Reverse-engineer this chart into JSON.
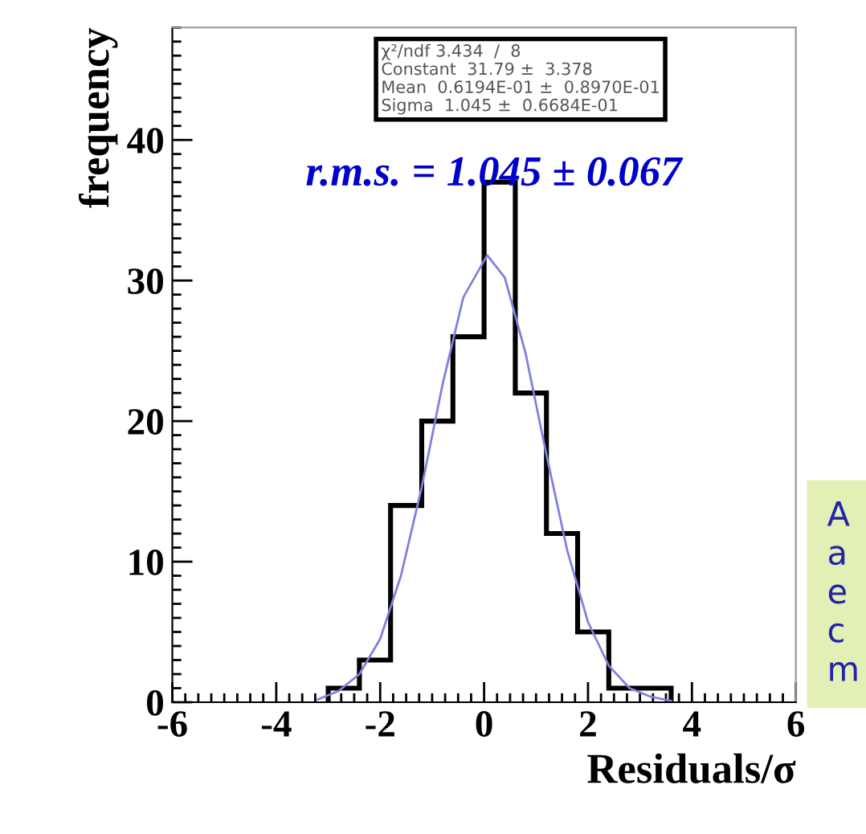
{
  "chart_data": {
    "type": "histogram",
    "xlabel": "Residuals/σ",
    "ylabel": "frequency",
    "xlim": [
      -6,
      6
    ],
    "xticks": [
      -6,
      -4,
      -2,
      0,
      2,
      4,
      6
    ],
    "ylim": [
      0,
      48
    ],
    "yticks": [
      0,
      10,
      20,
      30,
      40
    ],
    "series": [
      {
        "color": "#000000",
        "bins": [
          -3.0,
          -2.4,
          -1.8,
          -1.2,
          -0.6,
          0,
          0.6,
          1.2,
          1.8,
          2.4,
          3.0,
          3.6
        ],
        "values": [
          1,
          3,
          14,
          20,
          26,
          37,
          22,
          12,
          5,
          1,
          1
        ]
      },
      {
        "type": "line",
        "color": "#8080e0",
        "x": [
          -3.2,
          -2.8,
          -2.4,
          -2.0,
          -1.6,
          -1.2,
          -0.8,
          -0.4,
          0.06,
          0.4,
          0.8,
          1.2,
          1.6,
          2.0,
          2.4,
          2.8,
          3.2,
          3.6
        ],
        "values": [
          0.2,
          0.8,
          2.0,
          4.5,
          9.0,
          15.3,
          22.6,
          28.8,
          31.8,
          30.2,
          24.8,
          17.6,
          10.8,
          5.7,
          2.6,
          1.0,
          0.4,
          0.1
        ]
      }
    ],
    "annotations": [
      "χ²/ndf 3.434  /  8\nConstant  31.79 ±  3.378\nMean  0.6194E-01 ±  0.8970E-01\nSigma  1.045 ±  0.6684E-01",
      "r.m.s. = 1.045 ± 0.067",
      "A\na\ne\nc\nm"
    ]
  }
}
